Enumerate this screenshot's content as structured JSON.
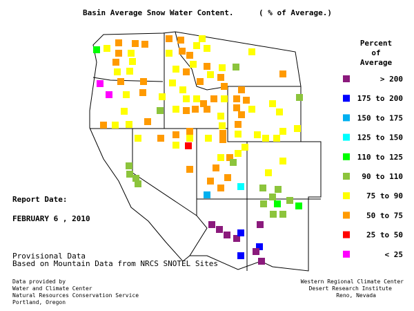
{
  "header": {
    "title": "Basin Average Snow Water Content.",
    "subtitle": "( % of Average.)"
  },
  "legend": {
    "title": [
      "Percent",
      "of",
      "Average"
    ],
    "items": [
      {
        "label": "> 200",
        "color": "#8b1a7c"
      },
      {
        "label": "175 to 200",
        "color": "#0000ff"
      },
      {
        "label": "150 to 175",
        "color": "#00b0f0"
      },
      {
        "label": "125 to 150",
        "color": "#00ffff"
      },
      {
        "label": "110 to 125",
        "color": "#00ff00"
      },
      {
        "label": "90 to 110",
        "color": "#8cc43c"
      },
      {
        "label": "75 to 90",
        "color": "#ffff00"
      },
      {
        "label": "50 to 75",
        "color": "#ff9a00"
      },
      {
        "label": "25 to 50",
        "color": "#ff0000"
      },
      {
        "label": "< 25",
        "color": "#ff00ff"
      }
    ]
  },
  "report": {
    "label": "Report Date:",
    "date": "FEBRUARY 6 , 2010"
  },
  "notes": [
    "Provisional Data",
    "Based on Mountain Data from NRCS SNOTEL Sites"
  ],
  "credits_left": [
    "Data provided by",
    "Water and Climate Center",
    "Natural Resources Conservation Service",
    "Portland, Oregon"
  ],
  "credits_right": [
    "Western Regional Climate Center",
    "Desert Research Institute",
    "Reno, Nevada"
  ]
}
